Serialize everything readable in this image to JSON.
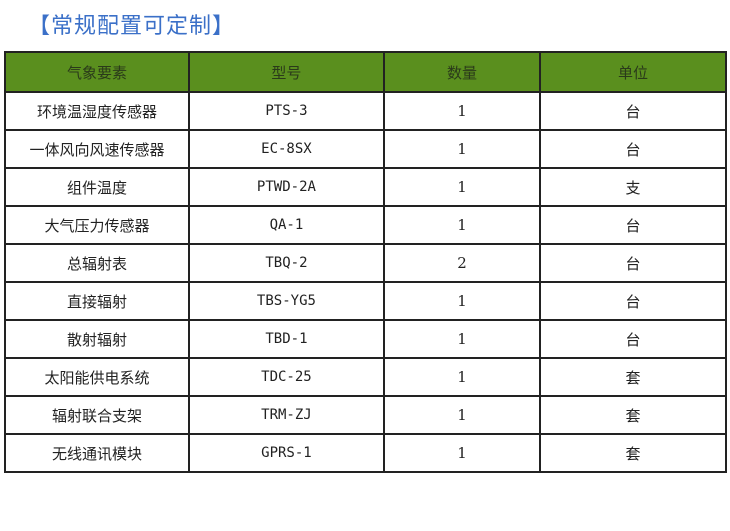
{
  "title": "【常规配置可定制】",
  "header": [
    "气象要素",
    "型号",
    "数量",
    "单位"
  ],
  "rows": [
    [
      "环境温湿度传感器",
      "PTS-3",
      "1",
      "台"
    ],
    [
      "一体风向风速传感器",
      "EC-8SX",
      "1",
      "台"
    ],
    [
      "组件温度",
      "PTWD-2A",
      "1",
      "支"
    ],
    [
      "大气压力传感器",
      "QA-1",
      "1",
      "台"
    ],
    [
      "总辐射表",
      "TBQ-2",
      "2",
      "台"
    ],
    [
      "直接辐射",
      "TBS-YG5",
      "1",
      "台"
    ],
    [
      "散射辐射",
      "TBD-1",
      "1",
      "台"
    ],
    [
      "太阳能供电系统",
      "TDC-25",
      "1",
      "套"
    ],
    [
      "辐射联合支架",
      "TRM-ZJ",
      "1",
      "套"
    ],
    [
      "无线通讯模块",
      "GPRS-1",
      "1",
      "套"
    ]
  ],
  "colors": {
    "header_bg": "#5a8f1e",
    "title": "#3b70c8"
  }
}
